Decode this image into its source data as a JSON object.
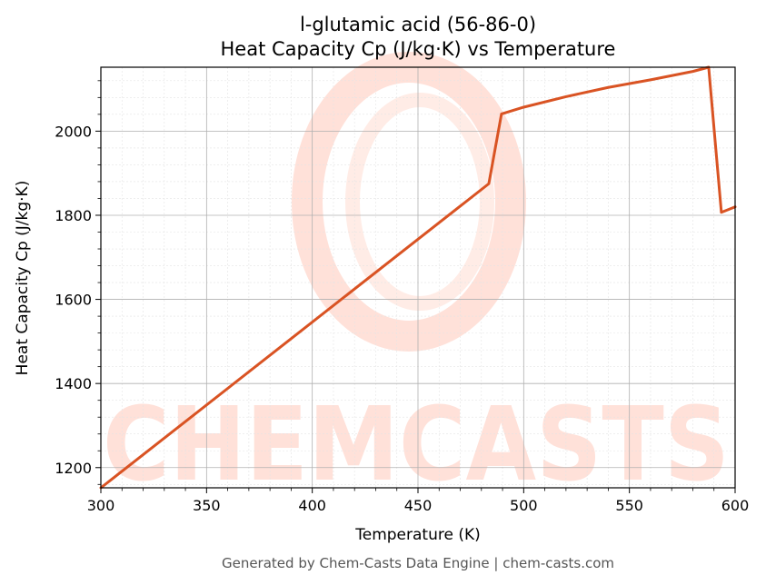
{
  "chart_data": {
    "type": "line",
    "title": "l-glutamic acid (56-86-0)",
    "subtitle": "Heat Capacity Cp (J/kg·K) vs Temperature",
    "xlabel": "Temperature (K)",
    "ylabel": "Heat Capacity Cp (J/kg·K)",
    "xlim": [
      300,
      600
    ],
    "ylim": [
      1152,
      2152
    ],
    "x_ticks": [
      300,
      350,
      400,
      450,
      500,
      550,
      600
    ],
    "y_ticks": [
      1200,
      1400,
      1600,
      1800,
      2000
    ],
    "grid": true,
    "series": [
      {
        "color": "#d95323",
        "x": [
          300,
          483.5,
          489.5,
          500,
          520,
          540,
          560,
          580,
          587.5,
          593.5,
          600
        ],
        "y": [
          1152,
          1875,
          2041,
          2057,
          2082,
          2104,
          2122,
          2142,
          2152,
          1807,
          1820
        ]
      }
    ],
    "watermark": "CHEMCASTS",
    "footer": "Generated by Chem-Casts Data Engine | chem-casts.com"
  }
}
